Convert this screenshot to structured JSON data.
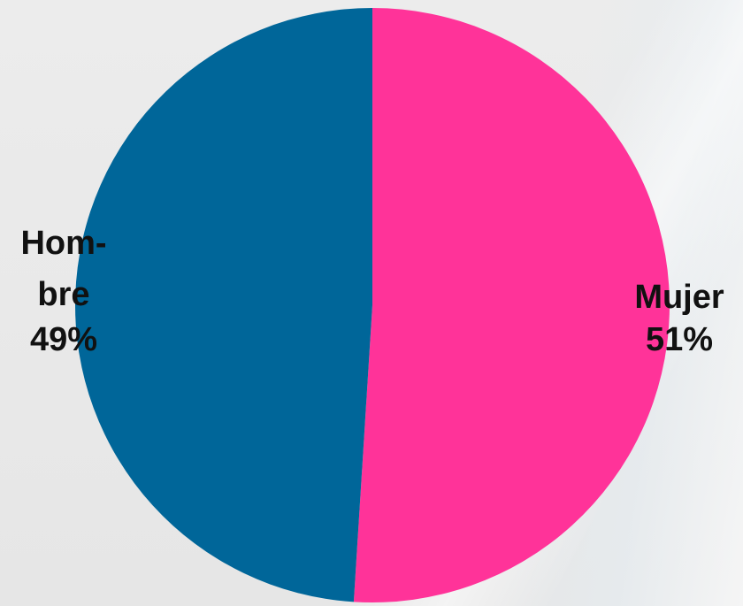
{
  "chart_data": {
    "type": "pie",
    "slices": [
      {
        "category": "Mujer",
        "percent_label": "51%",
        "value": 51,
        "color": "#ff3399"
      },
      {
        "category": "Hombre",
        "category_lines": [
          "Hom-",
          "bre"
        ],
        "percent_label": "49%",
        "value": 49,
        "color": "#006699"
      }
    ],
    "start_angle_deg": 0,
    "direction": "clockwise",
    "legend": "none"
  }
}
